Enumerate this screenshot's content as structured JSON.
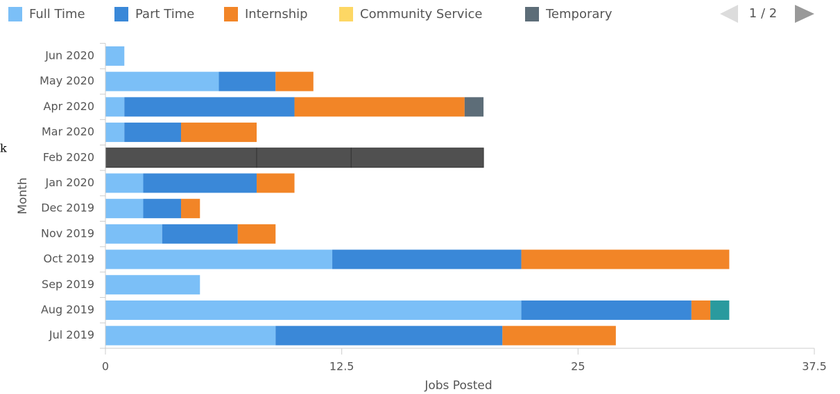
{
  "chart_data": {
    "type": "bar",
    "orientation": "horizontal",
    "stacked": true,
    "xlabel": "Jobs Posted",
    "ylabel": "Month",
    "categories": [
      "Jul 2019",
      "Aug 2019",
      "Sep 2019",
      "Oct 2019",
      "Nov 2019",
      "Dec 2019",
      "Jan 2020",
      "Feb 2020",
      "Mar 2020",
      "Apr 2020",
      "May 2020",
      "Jun 2020"
    ],
    "series": [
      {
        "name": "Full Time",
        "color": "#7bbff7",
        "values": [
          9,
          22,
          5,
          12,
          3,
          2,
          2,
          null,
          1,
          1,
          6,
          1
        ]
      },
      {
        "name": "Part Time",
        "color": "#3a88d8",
        "values": [
          12,
          9,
          null,
          10,
          4,
          2,
          6,
          null,
          3,
          9,
          3,
          null
        ]
      },
      {
        "name": "Internship",
        "color": "#f28527",
        "values": [
          6,
          1,
          null,
          11,
          2,
          1,
          2,
          null,
          4,
          9,
          2,
          null
        ]
      },
      {
        "name": "Community Service",
        "color": "#fdd764",
        "values": [
          null,
          null,
          null,
          null,
          null,
          null,
          null,
          null,
          null,
          null,
          null,
          null
        ]
      },
      {
        "name": "Temporary",
        "color": "#5d6d78",
        "values": [
          null,
          null,
          null,
          null,
          null,
          null,
          null,
          null,
          null,
          1,
          null,
          null
        ]
      },
      {
        "color": "#505050",
        "values": [
          null,
          null,
          null,
          null,
          null,
          null,
          null,
          8,
          null,
          null,
          null,
          null
        ]
      },
      {
        "color": "#505050",
        "values": [
          null,
          null,
          null,
          null,
          null,
          null,
          null,
          5,
          null,
          null,
          null,
          null
        ]
      },
      {
        "color": "#505050",
        "values": [
          null,
          null,
          null,
          null,
          null,
          null,
          null,
          7,
          null,
          null,
          null,
          null
        ]
      },
      {
        "color": "#2a9a9e",
        "values": [
          null,
          1,
          null,
          null,
          null,
          null,
          null,
          null,
          null,
          null,
          null,
          null
        ]
      }
    ],
    "xlim": [
      0,
      37.5
    ],
    "xticks": [
      0,
      12.5,
      25,
      37.5
    ],
    "legend": "top",
    "legend_page": "1 / 2",
    "annotations": [
      "k"
    ]
  }
}
